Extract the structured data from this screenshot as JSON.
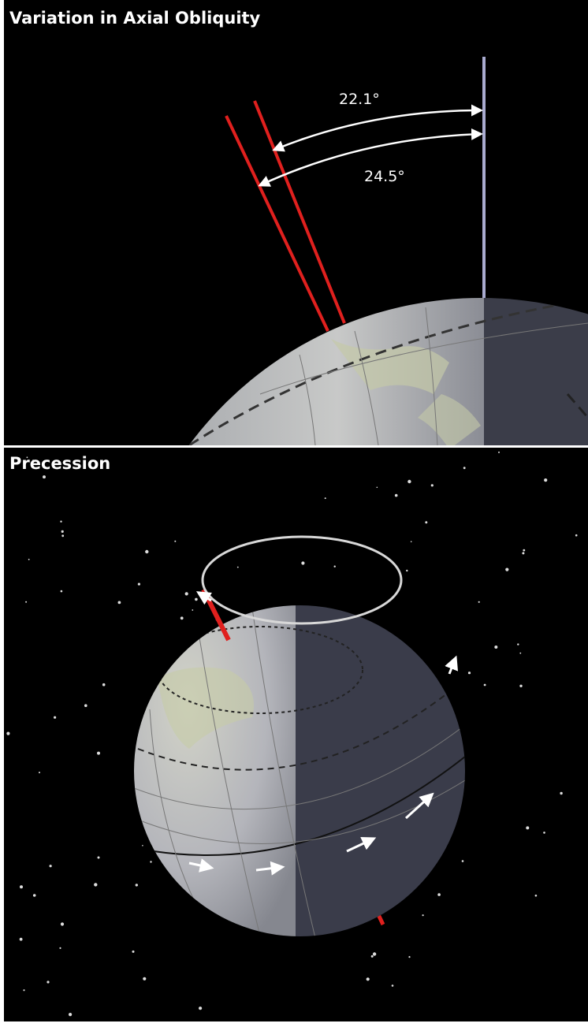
{
  "panels": [
    {
      "title": "Variation in Axial Obliquity",
      "labels": [
        "22.1°",
        "24.5°"
      ]
    },
    {
      "title": "Precession"
    }
  ]
}
